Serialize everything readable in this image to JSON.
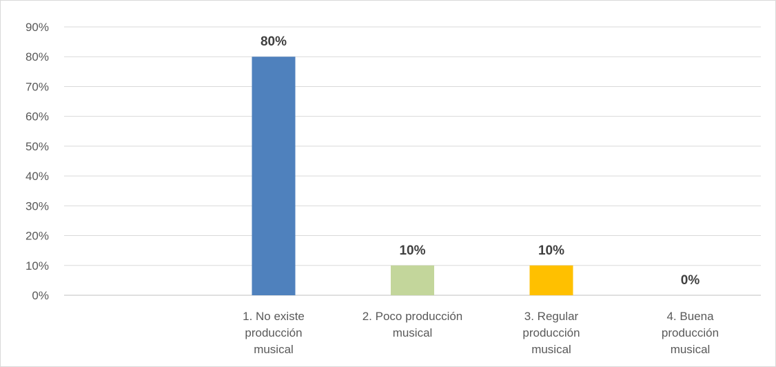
{
  "chart_data": {
    "type": "bar",
    "categories": [
      [
        "1. No existe",
        "producción",
        "musical"
      ],
      [
        "2. Poco producción",
        "musical"
      ],
      [
        "3. Regular",
        "producción",
        "musical"
      ],
      [
        "4. Buena",
        "producción",
        "musical"
      ]
    ],
    "values": [
      80,
      10,
      10,
      0
    ],
    "data_labels": [
      "80%",
      "10%",
      "10%",
      "0%"
    ],
    "bar_colors": [
      "#4f81bd",
      "#c3d69b",
      "#ffc000",
      "#a5a5a5"
    ],
    "ylim": [
      0,
      90
    ],
    "yticks": [
      0,
      10,
      20,
      30,
      40,
      50,
      60,
      70,
      80,
      90
    ],
    "ytick_labels": [
      "0%",
      "10%",
      "20%",
      "30%",
      "40%",
      "50%",
      "60%",
      "70%",
      "80%",
      "90%"
    ],
    "grid": true,
    "legend": "none",
    "title": "",
    "xlabel": "",
    "ylabel": ""
  }
}
